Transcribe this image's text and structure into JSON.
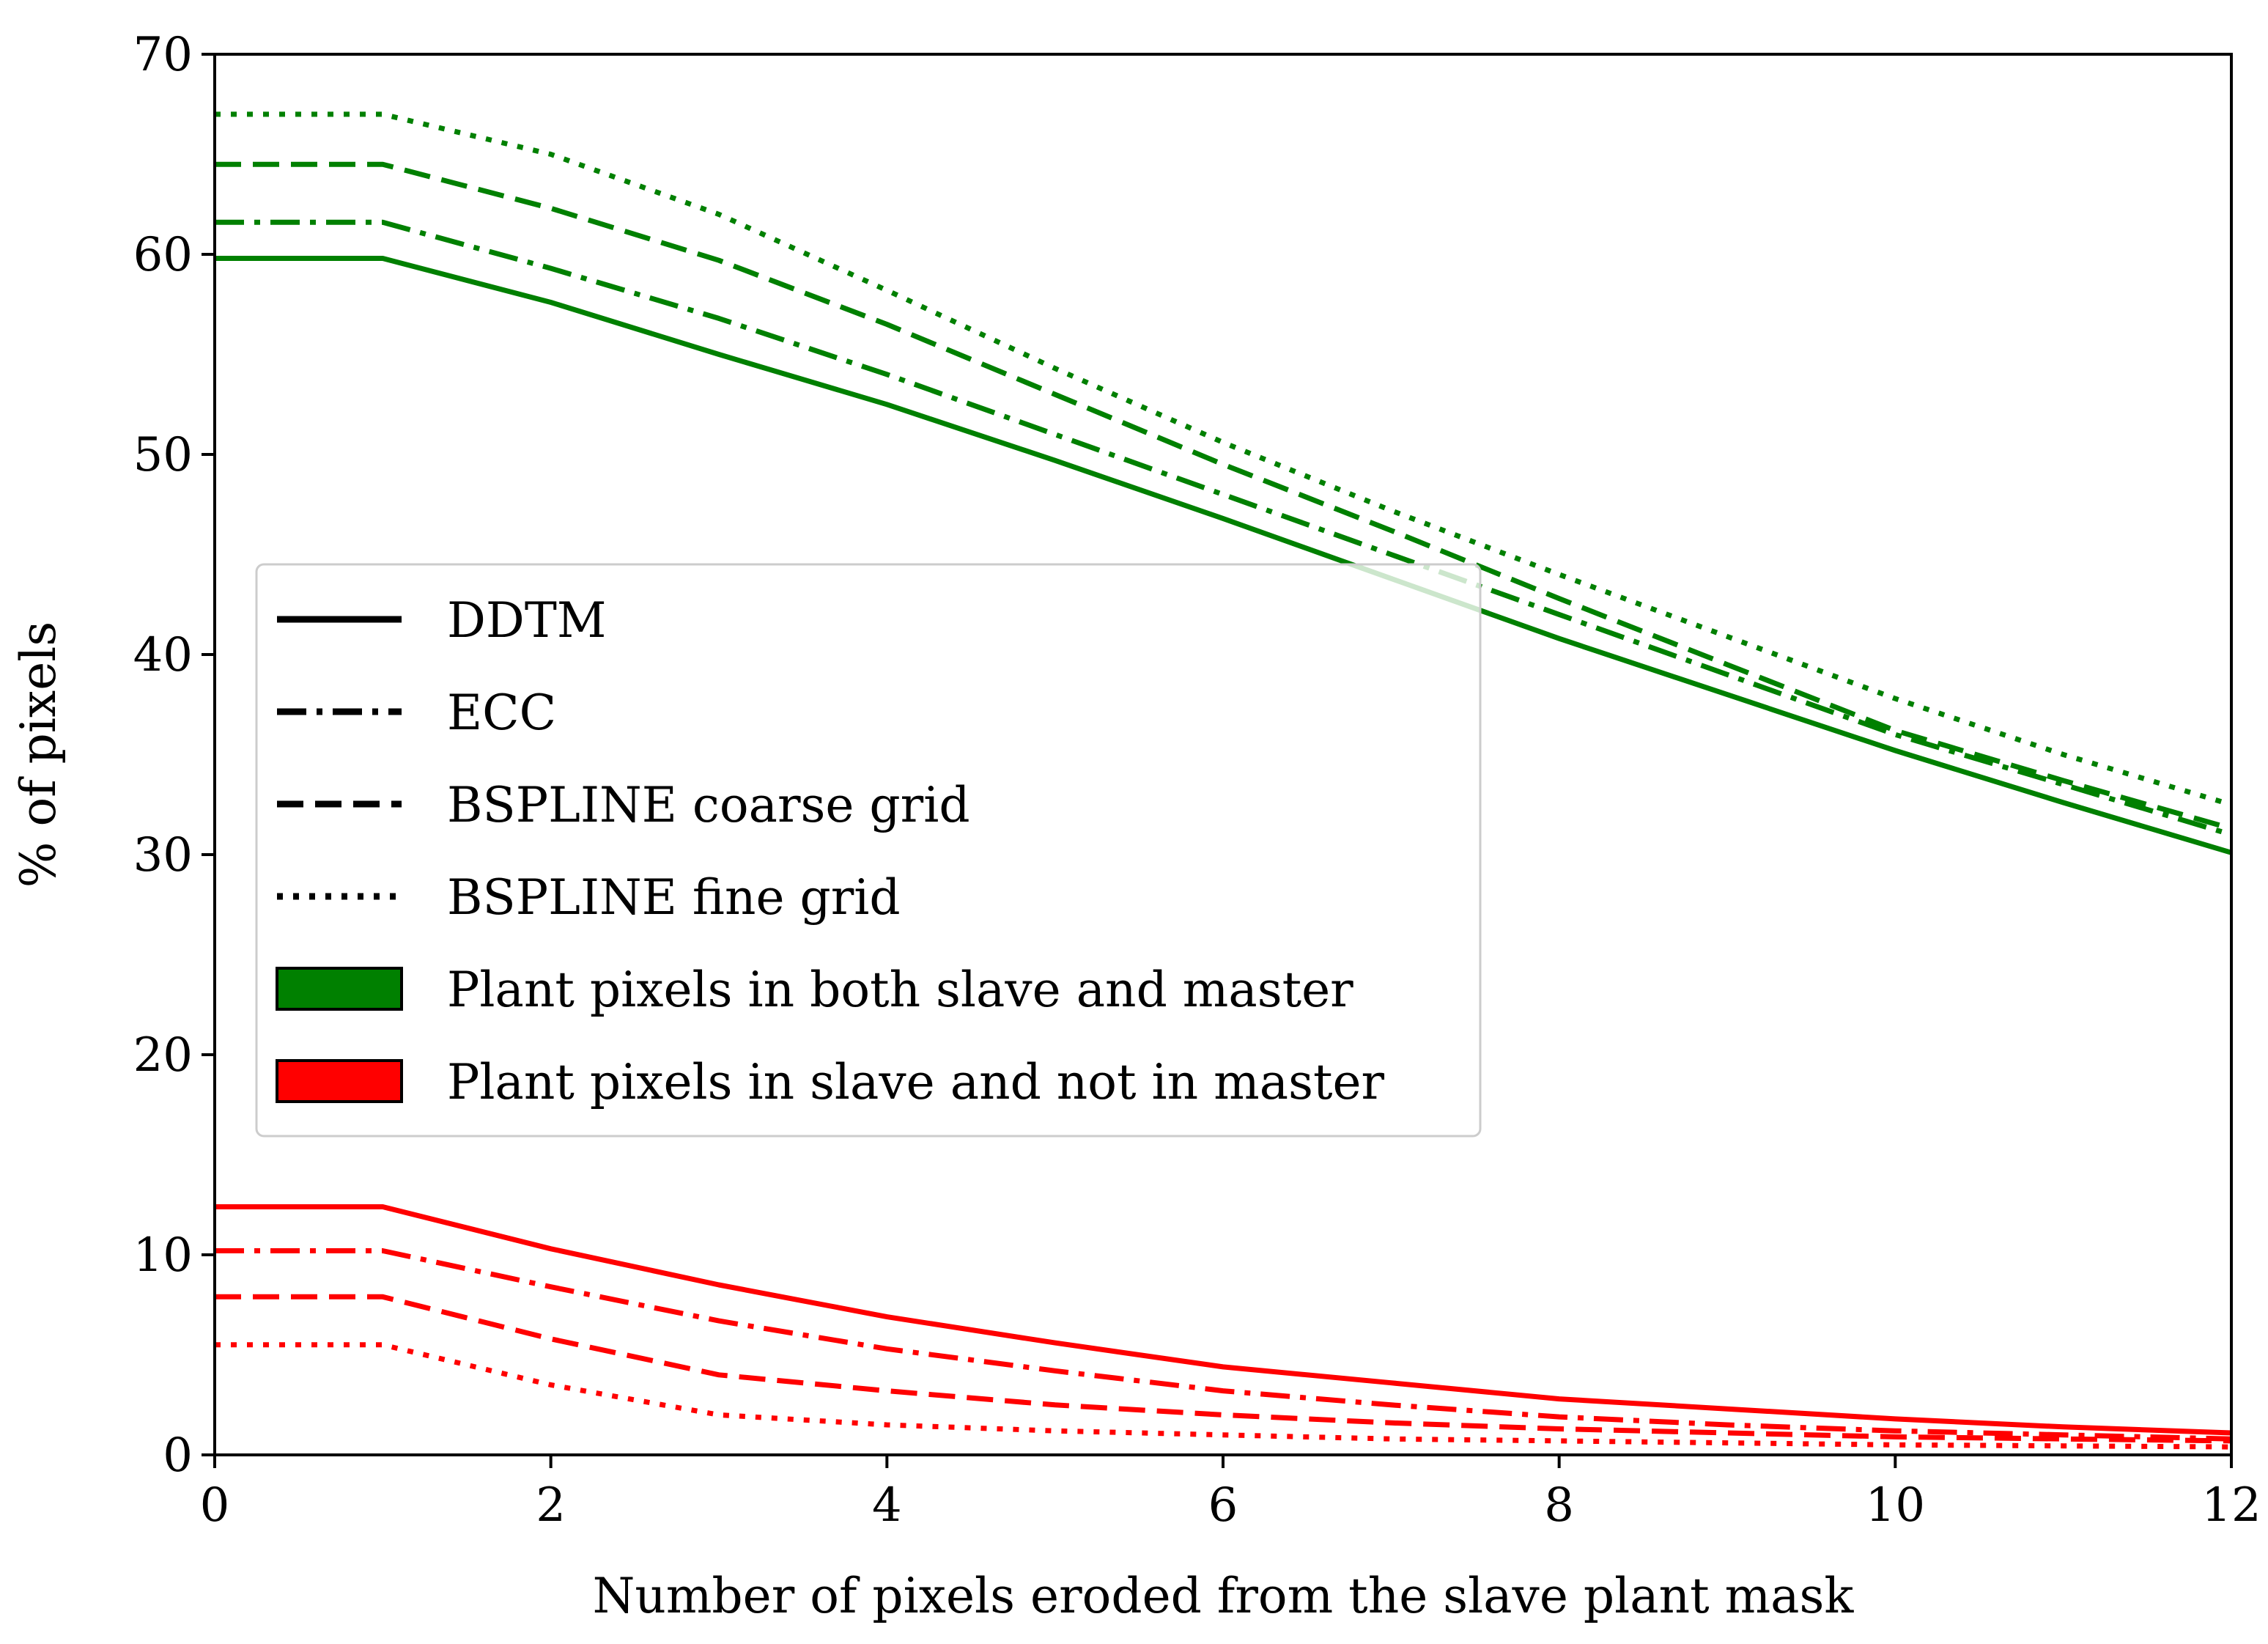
{
  "chart_data": {
    "type": "line",
    "title": "",
    "xlabel": "Number of pixels eroded from the slave plant mask",
    "ylabel": "% of pixels",
    "xlim": [
      0,
      12
    ],
    "ylim": [
      0,
      70
    ],
    "xticks": [
      0,
      2,
      4,
      6,
      8,
      10,
      12
    ],
    "yticks": [
      0,
      10,
      20,
      30,
      40,
      50,
      60,
      70
    ],
    "grid": false,
    "legend_position": "center-left",
    "x": [
      0,
      1,
      2,
      3,
      4,
      5,
      6,
      7,
      8,
      9,
      10,
      11,
      12
    ],
    "styles": [
      {
        "key": "solid",
        "label": "DDTM"
      },
      {
        "key": "dashdot",
        "label": "ECC"
      },
      {
        "key": "dashed",
        "label": "BSPLINE coarse grid"
      },
      {
        "key": "dotted",
        "label": "BSPLINE fine grid"
      }
    ],
    "groups": [
      {
        "key": "green",
        "label": "Plant pixels in both slave and master",
        "color": "#008000"
      },
      {
        "key": "red",
        "label": "Plant pixels in slave and not in master",
        "color": "#ff0000"
      }
    ],
    "series": [
      {
        "name": "DDTM - Plant pixels in both slave and master",
        "group": "green",
        "style": "solid",
        "values": [
          59.8,
          59.8,
          57.6,
          55.0,
          52.5,
          49.7,
          46.8,
          43.8,
          40.8,
          38.0,
          35.2,
          32.6,
          30.1
        ]
      },
      {
        "name": "ECC - Plant pixels in both slave and master",
        "group": "green",
        "style": "dashdot",
        "values": [
          61.6,
          61.6,
          59.3,
          56.8,
          54.0,
          51.0,
          48.0,
          45.0,
          42.0,
          39.0,
          36.0,
          33.5,
          31.0
        ]
      },
      {
        "name": "BSPLINE coarse grid - Plant pixels in both slave and master",
        "group": "green",
        "style": "dashed",
        "values": [
          64.5,
          64.5,
          62.3,
          59.7,
          56.5,
          53.0,
          49.5,
          46.2,
          42.8,
          39.5,
          36.2,
          33.7,
          31.3
        ]
      },
      {
        "name": "BSPLINE fine grid - Plant pixels in both slave and master",
        "group": "green",
        "style": "dotted",
        "values": [
          67.0,
          67.0,
          65.0,
          62.0,
          58.2,
          54.3,
          50.6,
          47.2,
          44.0,
          40.9,
          37.8,
          35.0,
          32.5
        ]
      },
      {
        "name": "DDTM - Plant pixels in slave and not in master",
        "group": "red",
        "style": "solid",
        "values": [
          12.4,
          12.4,
          10.3,
          8.5,
          6.9,
          5.6,
          4.4,
          3.6,
          2.8,
          2.3,
          1.8,
          1.4,
          1.1
        ]
      },
      {
        "name": "ECC - Plant pixels in slave and not in master",
        "group": "red",
        "style": "dashdot",
        "values": [
          10.2,
          10.2,
          8.4,
          6.7,
          5.3,
          4.2,
          3.2,
          2.5,
          1.9,
          1.5,
          1.2,
          1.0,
          0.8
        ]
      },
      {
        "name": "BSPLINE coarse grid - Plant pixels in slave and not in master",
        "group": "red",
        "style": "dashed",
        "values": [
          7.9,
          7.9,
          5.8,
          4.0,
          3.2,
          2.5,
          2.0,
          1.6,
          1.3,
          1.1,
          0.9,
          0.8,
          0.7
        ]
      },
      {
        "name": "BSPLINE fine grid - Plant pixels in slave and not in master",
        "group": "red",
        "style": "dotted",
        "values": [
          5.5,
          5.5,
          3.5,
          2.0,
          1.5,
          1.2,
          1.0,
          0.8,
          0.7,
          0.6,
          0.5,
          0.45,
          0.4
        ]
      }
    ]
  }
}
